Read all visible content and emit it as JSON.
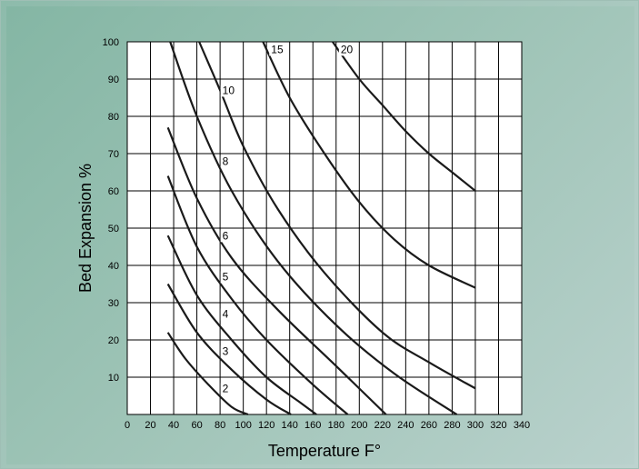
{
  "chart_data": {
    "type": "line",
    "title": "",
    "xlabel": "Temperature F°",
    "ylabel": "Bed Expansion %",
    "xlim": [
      0,
      340
    ],
    "ylim": [
      0,
      100
    ],
    "xticks": [
      0,
      20,
      40,
      60,
      80,
      100,
      120,
      140,
      160,
      180,
      200,
      220,
      240,
      260,
      280,
      300,
      320,
      340
    ],
    "yticks": [
      10,
      20,
      30,
      40,
      50,
      60,
      70,
      80,
      90,
      100
    ],
    "grid": true,
    "series": [
      {
        "name": "2",
        "x": [
          35,
          50,
          70,
          90,
          104
        ],
        "y": [
          22,
          15,
          8,
          2,
          0
        ]
      },
      {
        "name": "3",
        "x": [
          35,
          60,
          90,
          120,
          141
        ],
        "y": [
          35,
          22,
          12,
          4,
          0
        ]
      },
      {
        "name": "4",
        "x": [
          35,
          60,
          90,
          120,
          150,
          163
        ],
        "y": [
          48,
          32,
          20,
          10,
          3,
          0
        ]
      },
      {
        "name": "5",
        "x": [
          35,
          60,
          90,
          120,
          160,
          190
        ],
        "y": [
          64,
          45,
          31,
          20,
          8,
          0
        ]
      },
      {
        "name": "6",
        "x": [
          35,
          60,
          90,
          130,
          180,
          223
        ],
        "y": [
          77,
          58,
          42,
          28,
          13,
          0
        ]
      },
      {
        "name": "8",
        "x": [
          37,
          60,
          90,
          130,
          180,
          230,
          284
        ],
        "y": [
          100,
          80,
          60,
          41,
          24,
          11,
          0
        ]
      },
      {
        "name": "10",
        "x": [
          62,
          80,
          100,
          130,
          170,
          220,
          260,
          300
        ],
        "y": [
          100,
          87,
          72,
          55,
          38,
          22,
          14,
          7
        ]
      },
      {
        "name": "15",
        "x": [
          117,
          140,
          170,
          200,
          230,
          260,
          300
        ],
        "y": [
          100,
          85,
          70,
          57,
          47,
          40,
          34
        ]
      },
      {
        "name": "20",
        "x": [
          177,
          200,
          220,
          240,
          260,
          280,
          300
        ],
        "y": [
          100,
          90,
          83,
          76,
          70,
          65,
          60
        ]
      }
    ],
    "curve_labels": [
      {
        "text": "2",
        "x": 82,
        "y": 6
      },
      {
        "text": "3",
        "x": 82,
        "y": 16
      },
      {
        "text": "4",
        "x": 82,
        "y": 26
      },
      {
        "text": "5",
        "x": 82,
        "y": 36
      },
      {
        "text": "6",
        "x": 82,
        "y": 47
      },
      {
        "text": "8",
        "x": 82,
        "y": 67
      },
      {
        "text": "10",
        "x": 82,
        "y": 86
      },
      {
        "text": "15",
        "x": 124,
        "y": 97
      },
      {
        "text": "20",
        "x": 184,
        "y": 97
      }
    ]
  }
}
